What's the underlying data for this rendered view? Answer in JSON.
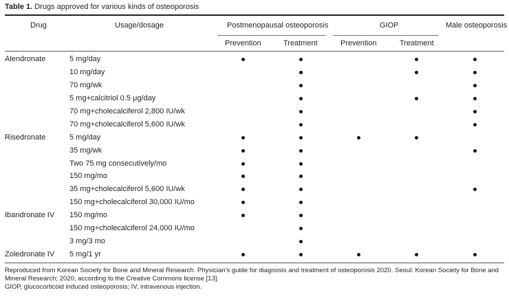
{
  "caption": {
    "label": "Table 1.",
    "title": "Drugs approved for various kinds of osteoporosis"
  },
  "headers": {
    "drug": "Drug",
    "usage": "Usage/dosage",
    "postmenopausal": "Postmenopausal osteoporosis",
    "giop": "GIOP",
    "male": "Male osteoporosis",
    "pm_prevention": "Prevention",
    "pm_treatment": "Treatment",
    "giop_prevention": "Prevention",
    "giop_treatment": "Treatment"
  },
  "rows": [
    {
      "drug": "Alendronate",
      "dosage": "5 mg/day",
      "marks": [
        true,
        true,
        false,
        true,
        true
      ]
    },
    {
      "drug": "",
      "dosage": "10 mg/day",
      "marks": [
        false,
        true,
        false,
        true,
        true
      ]
    },
    {
      "drug": "",
      "dosage": "70 mg/wk",
      "marks": [
        false,
        true,
        false,
        false,
        true
      ]
    },
    {
      "drug": "",
      "dosage": "5 mg+calcitriol 0.5 μg/day",
      "marks": [
        false,
        true,
        false,
        true,
        true
      ]
    },
    {
      "drug": "",
      "dosage": "70 mg+cholecalciferol 2,800 IU/wk",
      "marks": [
        false,
        true,
        false,
        false,
        true
      ]
    },
    {
      "drug": "",
      "dosage": "70 mg+cholecalciferol 5,600 IU/wk",
      "marks": [
        false,
        true,
        false,
        false,
        true
      ]
    },
    {
      "drug": "Risedronate",
      "dosage": "5 mg/day",
      "marks": [
        true,
        true,
        true,
        true,
        false
      ]
    },
    {
      "drug": "",
      "dosage": "35 mg/wk",
      "marks": [
        true,
        true,
        false,
        false,
        true
      ]
    },
    {
      "drug": "",
      "dosage": "Two 75 mg consecutively/mo",
      "marks": [
        true,
        true,
        false,
        false,
        false
      ]
    },
    {
      "drug": "",
      "dosage": "150 mg/mo",
      "marks": [
        true,
        true,
        false,
        false,
        false
      ]
    },
    {
      "drug": "",
      "dosage": "35 mg+cholecalciferol 5,600 IU/wk",
      "marks": [
        true,
        true,
        false,
        false,
        true
      ]
    },
    {
      "drug": "",
      "dosage": "150 mg+cholecalciferol 30,000 IU/mo",
      "marks": [
        true,
        true,
        false,
        false,
        false
      ]
    },
    {
      "drug": "Ibandronate IV",
      "dosage": "150 mg/mo",
      "marks": [
        true,
        true,
        false,
        false,
        false
      ]
    },
    {
      "drug": "",
      "dosage": "150 mg+cholecalciferol 24,000 IU/mo",
      "marks": [
        false,
        true,
        false,
        false,
        false
      ]
    },
    {
      "drug": "",
      "dosage": "3 mg/3 mo",
      "marks": [
        false,
        true,
        false,
        false,
        false
      ]
    },
    {
      "drug": "Zoledronate IV",
      "dosage": "5 mg/1 yr",
      "marks": [
        true,
        true,
        true,
        true,
        true
      ]
    }
  ],
  "notes": [
    "Reproduced from Korean Society for Bone and Mineral Research. Physician’s guide for diagnosis and treatment of osteoporosis 2020. Seoul: Korean Society for Bone and Mineral Research; 2020, according to the Creative Commons license [13].",
    "GIOP, glucocorticoid induced osteoporosis; IV, intravenous injection."
  ]
}
